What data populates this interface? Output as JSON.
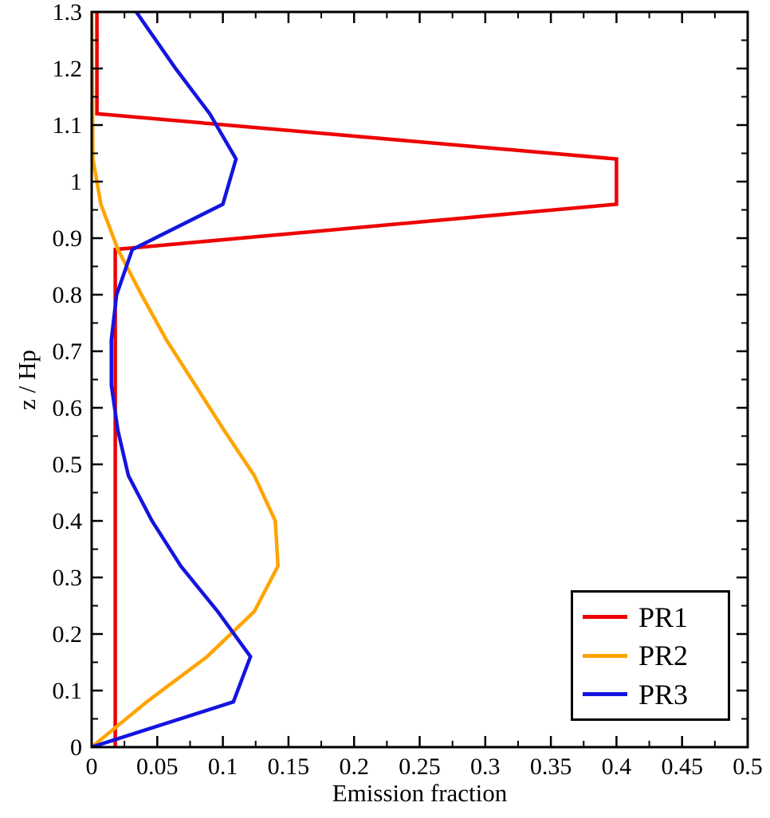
{
  "chart_data": {
    "type": "line",
    "title": "",
    "xlabel": "Emission fraction",
    "ylabel": "z / Hp",
    "xlim": [
      0,
      0.5
    ],
    "ylim": [
      0,
      1.3
    ],
    "grid": false,
    "x_tick_values": [
      0,
      0.05,
      0.1,
      0.15,
      0.2,
      0.25,
      0.3,
      0.35,
      0.4,
      0.45,
      0.5
    ],
    "x_tick_labels": [
      "0",
      "0.05",
      "0.1",
      "0.15",
      "0.2",
      "0.25",
      "0.3",
      "0.35",
      "0.4",
      "0.45",
      "0.5"
    ],
    "x_minor_step": 0.025,
    "y_tick_values": [
      0,
      0.1,
      0.2,
      0.3,
      0.4,
      0.5,
      0.6,
      0.7,
      0.8,
      0.9,
      1.0,
      1.1,
      1.2,
      1.3
    ],
    "y_tick_labels": [
      "0",
      "0.1",
      "0.2",
      "0.3",
      "0.4",
      "0.5",
      "0.6",
      "0.7",
      "0.8",
      "0.9",
      "1",
      "1.1",
      "1.2",
      "1.3"
    ],
    "y_minor_step": 0.05,
    "legend": {
      "position": "bottom-right",
      "entries": [
        "PR1",
        "PR2",
        "PR3"
      ]
    },
    "series": [
      {
        "name": "PR1",
        "color": "#ee0000",
        "points": [
          [
            0.018,
            0.0
          ],
          [
            0.018,
            0.88
          ],
          [
            0.4,
            0.96
          ],
          [
            0.4,
            1.04
          ],
          [
            0.004,
            1.12
          ],
          [
            0.004,
            1.3
          ]
        ]
      },
      {
        "name": "PR2",
        "color": "#ffa400",
        "points": [
          [
            0.0,
            0.0
          ],
          [
            0.042,
            0.08
          ],
          [
            0.088,
            0.16
          ],
          [
            0.124,
            0.24
          ],
          [
            0.142,
            0.32
          ],
          [
            0.14,
            0.4
          ],
          [
            0.124,
            0.48
          ],
          [
            0.101,
            0.56
          ],
          [
            0.079,
            0.64
          ],
          [
            0.057,
            0.72
          ],
          [
            0.038,
            0.8
          ],
          [
            0.02,
            0.88
          ],
          [
            0.007,
            0.96
          ],
          [
            0.001,
            1.04
          ],
          [
            0.0,
            1.3
          ]
        ]
      },
      {
        "name": "PR3",
        "color": "#1414e0",
        "points": [
          [
            0.0,
            0.0
          ],
          [
            0.108,
            0.08
          ],
          [
            0.121,
            0.16
          ],
          [
            0.096,
            0.24
          ],
          [
            0.068,
            0.32
          ],
          [
            0.046,
            0.4
          ],
          [
            0.028,
            0.48
          ],
          [
            0.02,
            0.56
          ],
          [
            0.015,
            0.64
          ],
          [
            0.015,
            0.72
          ],
          [
            0.019,
            0.8
          ],
          [
            0.031,
            0.88
          ],
          [
            0.1,
            0.96
          ],
          [
            0.11,
            1.04
          ],
          [
            0.09,
            1.12
          ],
          [
            0.064,
            1.2
          ],
          [
            0.04,
            1.28
          ],
          [
            0.034,
            1.3
          ]
        ]
      }
    ],
    "frame_color": "#000000"
  }
}
